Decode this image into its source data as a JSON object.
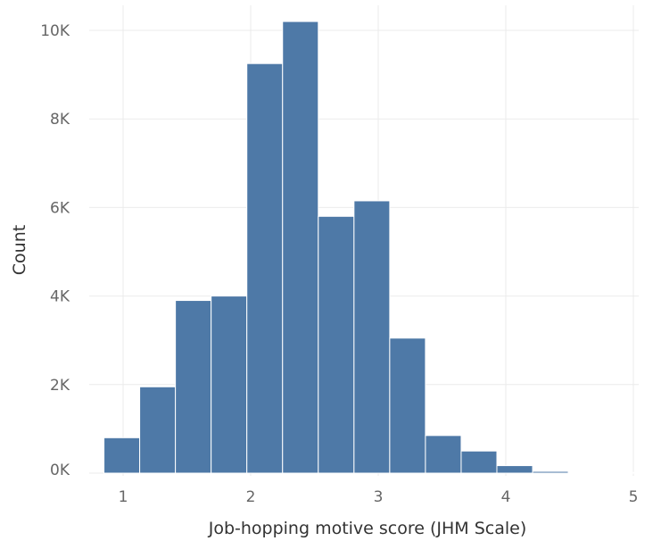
{
  "chart_data": {
    "type": "bar",
    "subtype": "histogram",
    "xlabel": "Job-hopping motive score (JHM Scale)",
    "ylabel": "Count",
    "xlim": [
      0.85,
      5.0
    ],
    "ylim": [
      0,
      10000
    ],
    "x_ticks": [
      1,
      2,
      3,
      4,
      5
    ],
    "x_tick_labels": [
      "1",
      "2",
      "3",
      "4",
      "5"
    ],
    "y_ticks": [
      0,
      2000,
      4000,
      6000,
      8000,
      10000
    ],
    "y_tick_labels": [
      "0K",
      "2K",
      "4K",
      "6K",
      "8K",
      "10K"
    ],
    "grid": true,
    "bar_color": "#4e79a7",
    "bins": [
      {
        "start": 0.85,
        "end": 1.13,
        "count": 800
      },
      {
        "start": 1.13,
        "end": 1.41,
        "count": 1950
      },
      {
        "start": 1.41,
        "end": 1.69,
        "count": 3900
      },
      {
        "start": 1.69,
        "end": 1.97,
        "count": 4000
      },
      {
        "start": 1.97,
        "end": 2.25,
        "count": 9250
      },
      {
        "start": 2.25,
        "end": 2.53,
        "count": 10200
      },
      {
        "start": 2.53,
        "end": 2.81,
        "count": 5800
      },
      {
        "start": 2.81,
        "end": 3.09,
        "count": 6150
      },
      {
        "start": 3.09,
        "end": 3.37,
        "count": 3050
      },
      {
        "start": 3.37,
        "end": 3.65,
        "count": 850
      },
      {
        "start": 3.65,
        "end": 3.93,
        "count": 500
      },
      {
        "start": 3.93,
        "end": 4.21,
        "count": 170
      },
      {
        "start": 4.21,
        "end": 4.49,
        "count": 40
      },
      {
        "start": 4.49,
        "end": 4.77,
        "count": 15
      },
      {
        "start": 4.77,
        "end": 5.05,
        "count": 5
      }
    ]
  }
}
